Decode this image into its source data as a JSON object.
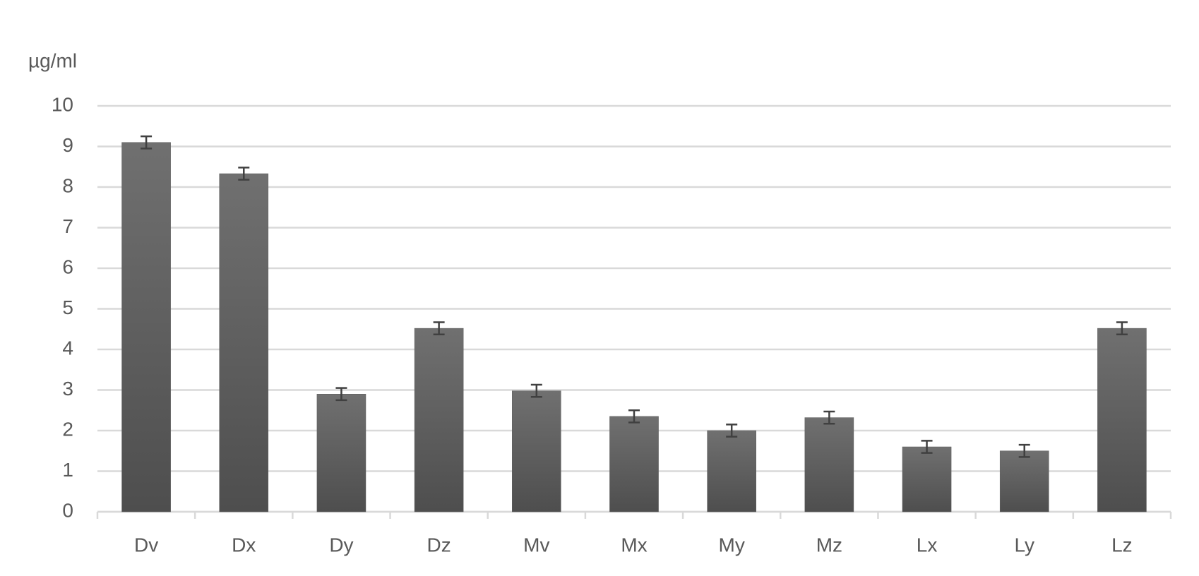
{
  "chart_data": {
    "type": "bar",
    "y_label": "µg/ml",
    "categories": [
      "Dv",
      "Dx",
      "Dy",
      "Dz",
      "Mv",
      "Mx",
      "My",
      "Mz",
      "Lx",
      "Ly",
      "Lz"
    ],
    "values": [
      9.1,
      8.33,
      2.9,
      4.52,
      2.98,
      2.35,
      2.0,
      2.32,
      1.6,
      1.5,
      4.52
    ],
    "errors": [
      0.15,
      0.15,
      0.15,
      0.15,
      0.15,
      0.15,
      0.15,
      0.15,
      0.15,
      0.15,
      0.15
    ],
    "color": "#5e5e5e",
    "ylim": [
      0,
      10
    ],
    "yticks": [
      0,
      1,
      2,
      3,
      4,
      5,
      6,
      7,
      8,
      9,
      10
    ],
    "grid": true
  }
}
